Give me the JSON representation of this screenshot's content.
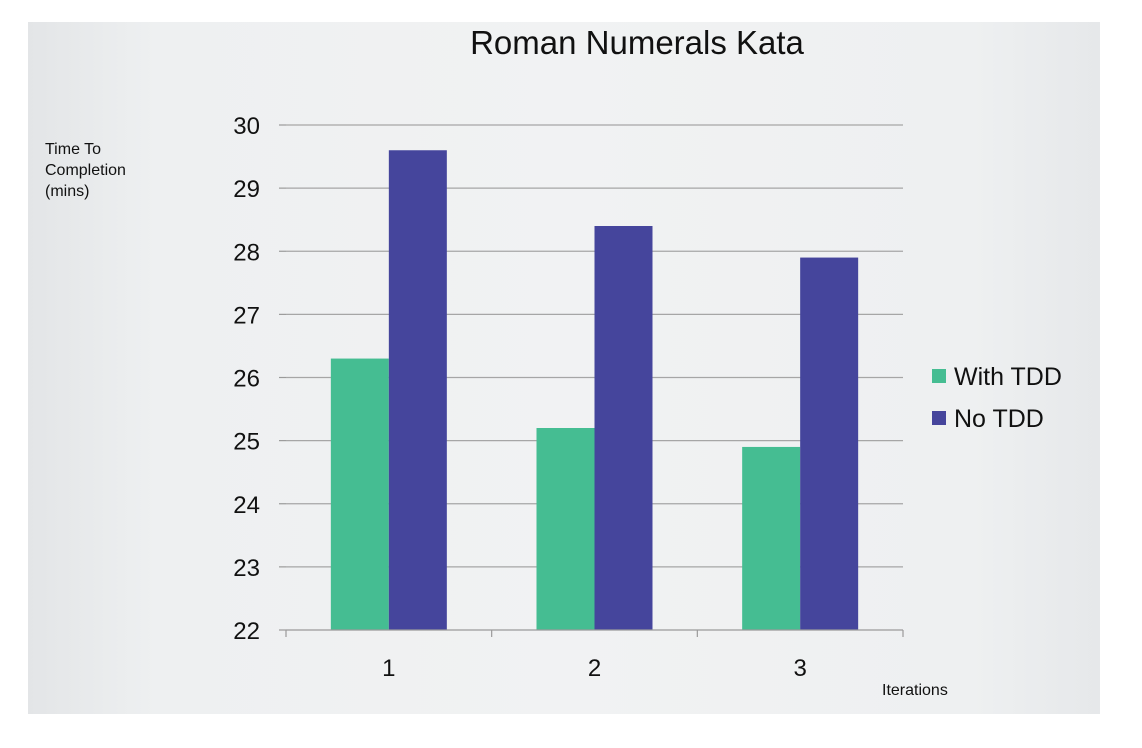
{
  "chart_data": {
    "type": "bar",
    "title": "Roman Numerals Kata",
    "ylabel": [
      "Time To",
      "Completion",
      "(mins)"
    ],
    "xlabel": "Iterations",
    "categories": [
      "1",
      "2",
      "3"
    ],
    "ylim": [
      22,
      30
    ],
    "yticks": [
      22,
      23,
      24,
      25,
      26,
      27,
      28,
      29,
      30
    ],
    "grid": true,
    "legend_position": "right",
    "series": [
      {
        "name": "With TDD",
        "color": "#45bd92",
        "values": [
          26.3,
          25.2,
          24.9
        ]
      },
      {
        "name": "No TDD",
        "color": "#45459c",
        "values": [
          29.6,
          28.4,
          27.9
        ]
      }
    ]
  }
}
